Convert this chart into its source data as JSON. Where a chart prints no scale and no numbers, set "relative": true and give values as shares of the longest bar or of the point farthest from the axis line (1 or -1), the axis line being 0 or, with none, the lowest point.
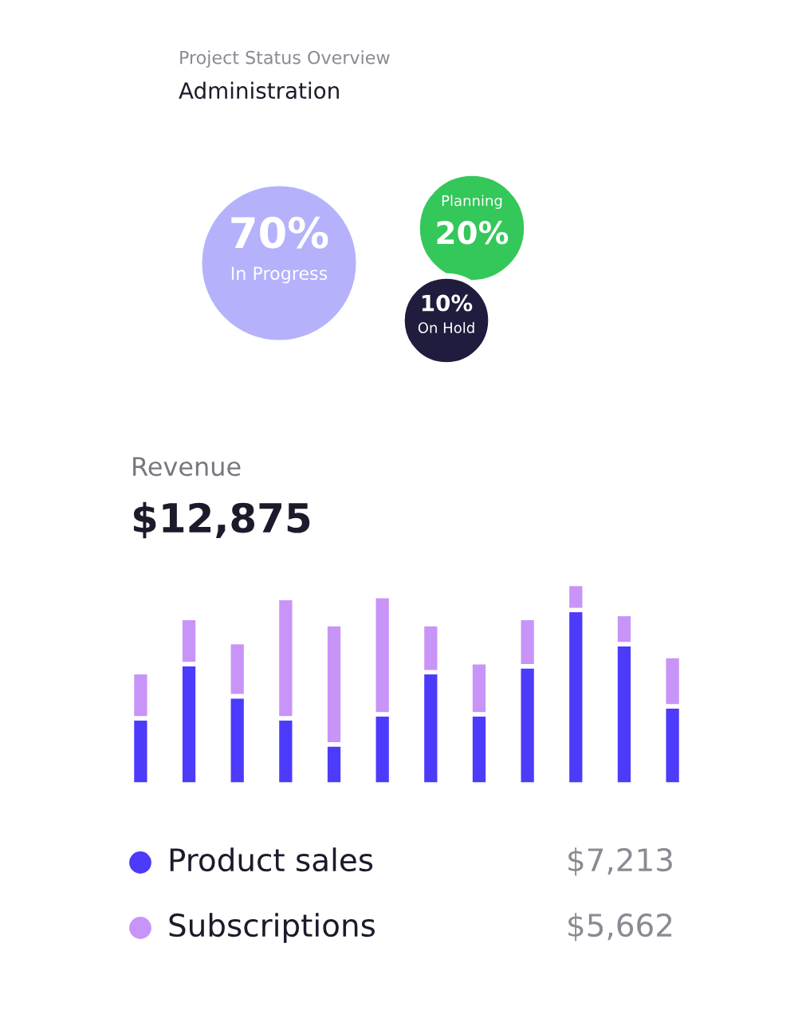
{
  "chart_data": [
    {
      "type": "other",
      "subtitle": "Project Status Overview",
      "title": "Administration",
      "categories": [
        "In Progress",
        "Planning",
        "On Hold"
      ],
      "values": [
        70,
        20,
        10
      ],
      "value_labels": [
        "70%",
        "20%",
        "10%"
      ],
      "colors": [
        "#b5b1fb",
        "#34c759",
        "#1f1c3d"
      ]
    },
    {
      "type": "bar",
      "title": "Revenue",
      "subtitle": "$12,875",
      "relative": true,
      "stacked": true,
      "legend": "bottom",
      "categories": [
        null,
        null,
        null,
        null,
        null,
        null,
        null,
        null,
        null,
        null,
        null,
        null
      ],
      "series": [
        {
          "name": "Product sales",
          "color": "#4c3bfa",
          "values": [
            0.33,
            0.6,
            0.44,
            0.33,
            0.2,
            0.35,
            0.56,
            0.35,
            0.59,
            0.87,
            0.7,
            0.39
          ]
        },
        {
          "name": "Subscriptions",
          "color": "#c894f8",
          "values": [
            0.23,
            0.23,
            0.27,
            0.6,
            0.6,
            0.59,
            0.24,
            0.26,
            0.24,
            0.13,
            0.15,
            0.25
          ]
        }
      ],
      "annotations": [
        "$7,213",
        "$5,662"
      ]
    }
  ]
}
